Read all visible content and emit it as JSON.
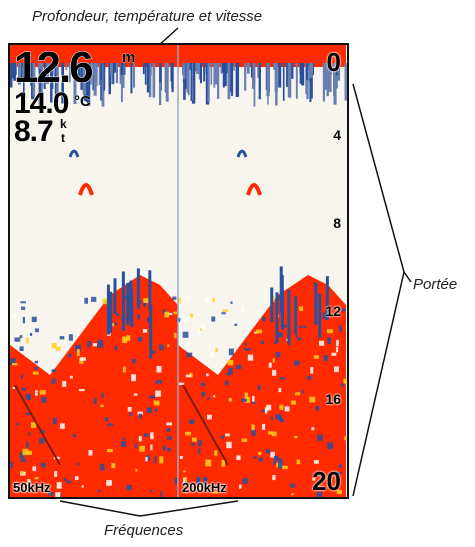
{
  "callouts": {
    "top": "Profondeur, température et vitesse",
    "right": "Portée",
    "bottom": "Fréquences"
  },
  "readouts": {
    "depth_value": "12.6",
    "depth_unit": "m",
    "temp_value": "14.0",
    "temp_unit": "°C",
    "speed_value": "8.7",
    "speed_unit_top": "k",
    "speed_unit_bottom": "t"
  },
  "frequencies": {
    "left": "50kHz",
    "right": "200kHz"
  },
  "depth_scale": [
    "0",
    "4",
    "8",
    "12",
    "16",
    "20"
  ],
  "colors": {
    "strong_return": "#ff2a00",
    "mid_return": "#ffd21a",
    "weak_return": "#2a4f9c",
    "background": "#f7f5ee"
  }
}
